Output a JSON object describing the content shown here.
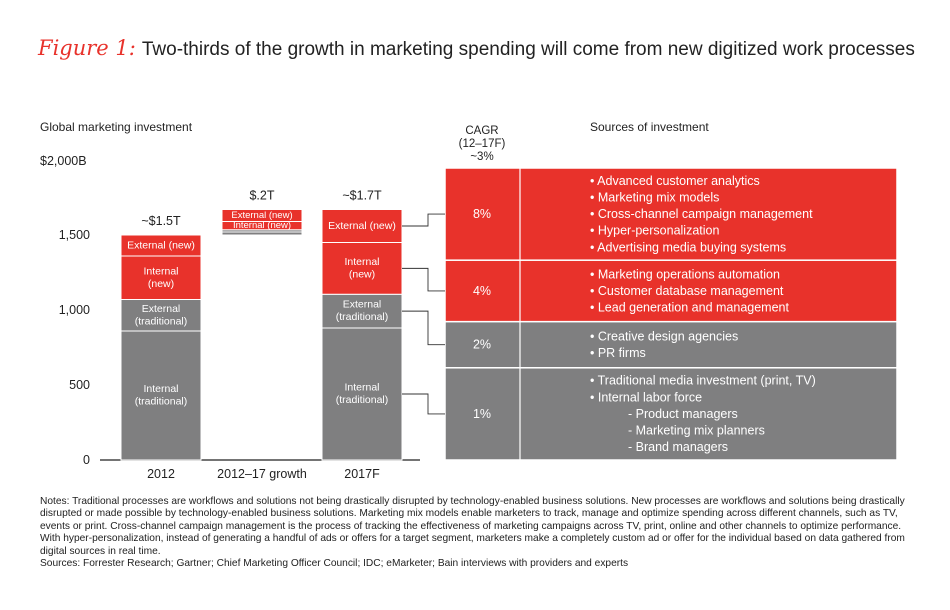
{
  "title": {
    "figure_label": "Figure 1:",
    "text": "Two-thirds of the growth in marketing spending will come from new digitized work processes"
  },
  "chart_data": {
    "type": "bar",
    "subtype": "stacked-waterfall",
    "ylabel": "Global marketing investment",
    "ytop_label": "$2,000B",
    "ylim": [
      0,
      2000
    ],
    "yticks": [
      0,
      500,
      1000,
      1500
    ],
    "ytick_labels": [
      "0",
      "500",
      "1,000",
      "1,500"
    ],
    "categories": [
      "2012",
      "2012–17 growth",
      "2017F"
    ],
    "totals": [
      "~$1.5T",
      "$.2T",
      "~$1.7T"
    ],
    "bars": [
      {
        "category": "2012",
        "segments": [
          {
            "name": "internal-traditional",
            "label": "Internal\n(traditional)",
            "value": 860,
            "color": "#7f7f80"
          },
          {
            "name": "external-traditional",
            "label": "External\n(traditional)",
            "value": 210,
            "color": "#7f7f80"
          },
          {
            "name": "internal-new",
            "label": "Internal\n(new)",
            "value": 290,
            "color": "#e8322b"
          },
          {
            "name": "external-new",
            "label": "External (new)",
            "value": 140,
            "color": "#e8322b"
          }
        ]
      },
      {
        "category": "2012–17 growth",
        "base": 1500,
        "segments": [
          {
            "name": "internal-traditional",
            "label": "",
            "value": 20,
            "color": "#7f7f80"
          },
          {
            "name": "external-traditional",
            "label": "",
            "value": 15,
            "color": "#7f7f80"
          },
          {
            "name": "internal-new",
            "label": "Internal (new)",
            "value": 55,
            "color": "#e8322b"
          },
          {
            "name": "external-new",
            "label": "External (new)",
            "value": 80,
            "color": "#e8322b"
          }
        ]
      },
      {
        "category": "2017F",
        "segments": [
          {
            "name": "internal-traditional",
            "label": "Internal\n(traditional)",
            "value": 880,
            "color": "#7f7f80"
          },
          {
            "name": "external-traditional",
            "label": "External\n(traditional)",
            "value": 225,
            "color": "#7f7f80"
          },
          {
            "name": "internal-new",
            "label": "Internal\n(new)",
            "value": 345,
            "color": "#e8322b"
          },
          {
            "name": "external-new",
            "label": "External (new)",
            "value": 220,
            "color": "#e8322b"
          }
        ]
      }
    ],
    "cagr_header": "CAGR\n(12–17F)\n~3%",
    "sources_header": "Sources of investment",
    "table": [
      {
        "segment": "external-new",
        "cagr": "8%",
        "color": "#e8322b",
        "items": [
          "• Advanced customer analytics",
          "• Marketing mix models",
          "• Cross-channel campaign management",
          "• Hyper-personalization",
          "• Advertising media buying systems"
        ]
      },
      {
        "segment": "internal-new",
        "cagr": "4%",
        "color": "#e8322b",
        "items": [
          "• Marketing operations automation",
          "• Customer database management",
          "• Lead generation and management"
        ]
      },
      {
        "segment": "external-traditional",
        "cagr": "2%",
        "color": "#7f7f80",
        "items": [
          "• Creative design agencies",
          "• PR firms"
        ]
      },
      {
        "segment": "internal-traditional",
        "cagr": "1%",
        "color": "#7f7f80",
        "items": [
          "• Traditional media investment (print, TV)",
          "• Internal labor force",
          "- Product managers",
          "- Marketing mix planners",
          "- Brand managers"
        ]
      }
    ]
  },
  "notes": {
    "text": "Notes: Traditional processes are workflows and solutions not being drastically disrupted by technology-enabled business solutions. New processes are workflows and solutions being drastically disrupted or made possible by technology-enabled business solutions. Marketing mix models enable marketers to track, manage and optimize spending across different channels, such as TV, events or print. Cross-channel campaign management is the process of tracking the effectiveness of marketing campaigns across TV, print, online and other channels to optimize performance. With hyper-personalization, instead of generating a handful of ads or offers for a target segment, marketers make a completely custom ad or offer for the individual based on data gathered from digital sources in real time.",
    "sources": "Sources: Forrester Research; Gartner; Chief Marketing Officer Council; IDC; eMarketer; Bain interviews with providers and experts"
  }
}
